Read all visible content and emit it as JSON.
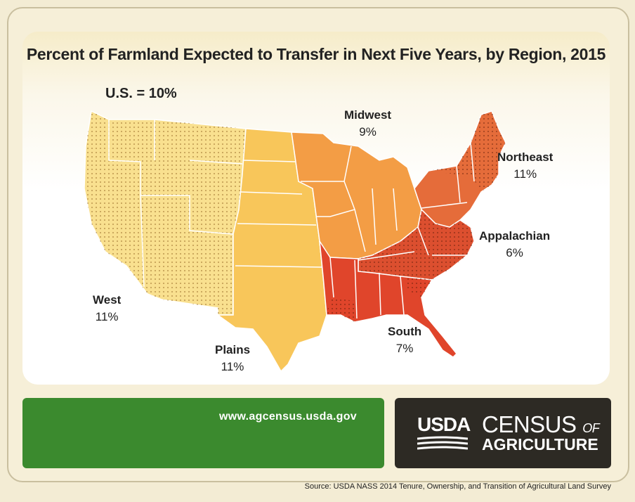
{
  "title": "Percent of Farmland Expected to Transfer in Next Five Years, by Region, 2015",
  "us_total": "U.S. = 10%",
  "regions": [
    {
      "name": "West",
      "value": "11%",
      "color": "#f9e08f",
      "pattern": "dots"
    },
    {
      "name": "Plains",
      "value": "11%",
      "color": "#f8c65a",
      "pattern": "none"
    },
    {
      "name": "Midwest",
      "value": "9%",
      "color": "#f39d45",
      "pattern": "none"
    },
    {
      "name": "Northeast",
      "value": "11%",
      "color": "#e56c3a",
      "pattern": "dots"
    },
    {
      "name": "Appalachian",
      "value": "6%",
      "color": "#dc4f2f",
      "pattern": "dots"
    },
    {
      "name": "South",
      "value": "7%",
      "color": "#e0452b",
      "pattern": "none"
    }
  ],
  "footer": {
    "url": "www.agcensus.usda.gov",
    "usda": "USDA",
    "census": "CENSUS",
    "census_of": "OF",
    "agriculture": "AGRICULTURE",
    "source": "Source: USDA NASS 2014 Tenure, Ownership, and Transition of Agricultural Land Survey"
  }
}
